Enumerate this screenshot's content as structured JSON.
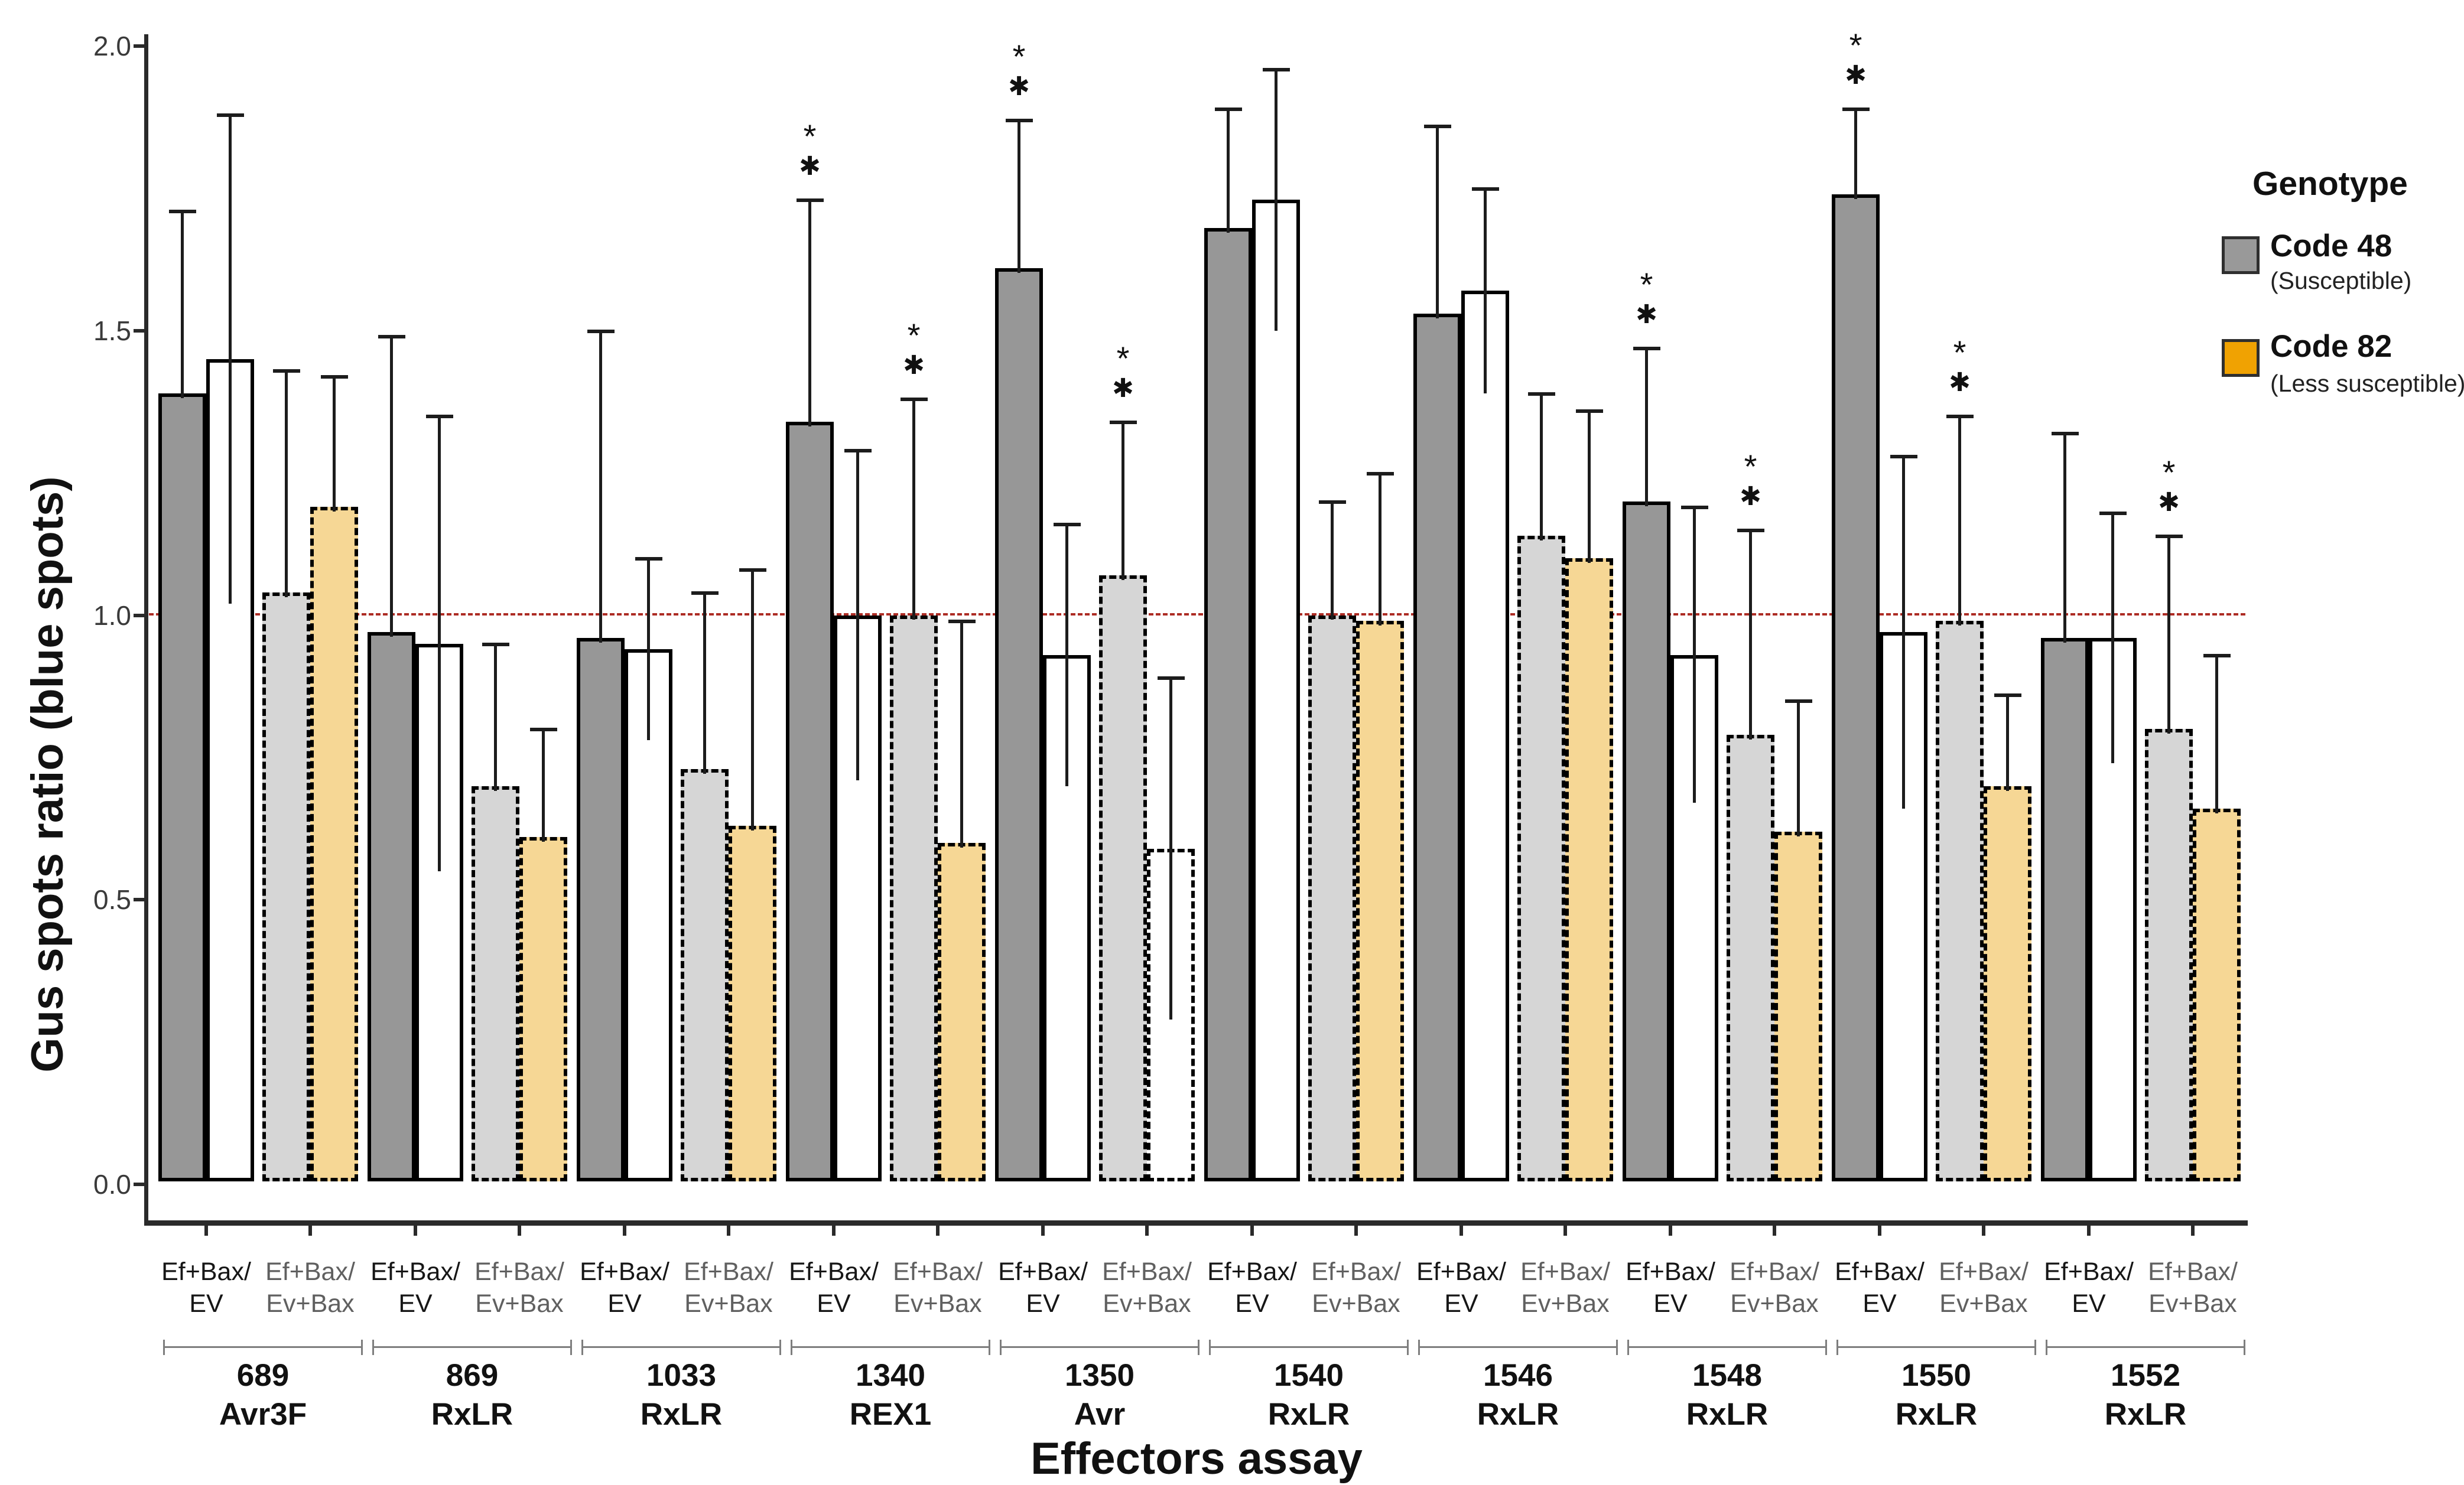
{
  "figure": {
    "y_axis_title": "Gus spots ratio (blue spots)",
    "x_axis_title": "Effectors assay"
  },
  "legend": {
    "title": "Genotype",
    "items": [
      {
        "label": "Code 48",
        "sublabel": "(Susceptible)",
        "color": "#999999"
      },
      {
        "label": "Code 82",
        "sublabel": "(Less susceptible)",
        "color": "#f0a202"
      }
    ]
  },
  "colors": {
    "darkgray": "#979797",
    "white": "#ffffff",
    "lightgray": "#d6d6d6",
    "tan": "#f6d795",
    "axis": "#2a2a2a",
    "reference_line": "#ad2c24",
    "error_bar": "#1c1c1c"
  },
  "chart_data": {
    "type": "bar",
    "title": "",
    "xlabel": "Effectors assay",
    "ylabel": "Gus spots ratio (blue spots)",
    "ylim": [
      0.0,
      2.0
    ],
    "yticks": [
      "0.0",
      "0.5",
      "1.0",
      "1.5",
      "2.0"
    ],
    "ytick_values": [
      0.0,
      0.5,
      1.0,
      1.5,
      2.0
    ],
    "reference_line": 1.0,
    "grid": false,
    "legend_position": "right",
    "significance_symbols": [
      "*",
      "✱"
    ],
    "bar_conditions": [
      {
        "line1": "Ef+Bax/",
        "line2": "EV",
        "tone": "ev"
      },
      {
        "line1": "Ef+Bax/",
        "line2": "Ev+Bax",
        "tone": "evbax"
      }
    ],
    "groups": [
      {
        "code": "689",
        "name": "Avr3F",
        "bars": [
          {
            "pair": 0,
            "fill": "darkgray",
            "dashed": false,
            "value": 1.39,
            "err_top": 1.71,
            "significant": false
          },
          {
            "pair": 0,
            "fill": "white",
            "dashed": false,
            "value": 1.45,
            "err_top": 1.88,
            "significant": false
          },
          {
            "pair": 1,
            "fill": "lightgray",
            "dashed": true,
            "value": 1.04,
            "err_top": 1.43,
            "significant": false
          },
          {
            "pair": 1,
            "fill": "tan",
            "dashed": true,
            "value": 1.19,
            "err_top": 1.42,
            "significant": false
          }
        ]
      },
      {
        "code": "869",
        "name": "RxLR",
        "bars": [
          {
            "pair": 0,
            "fill": "darkgray",
            "dashed": false,
            "value": 0.97,
            "err_top": 1.49,
            "significant": false
          },
          {
            "pair": 0,
            "fill": "white",
            "dashed": false,
            "value": 0.95,
            "err_top": 1.35,
            "significant": false
          },
          {
            "pair": 1,
            "fill": "lightgray",
            "dashed": true,
            "value": 0.7,
            "err_top": 0.95,
            "significant": false
          },
          {
            "pair": 1,
            "fill": "tan",
            "dashed": true,
            "value": 0.61,
            "err_top": 0.8,
            "significant": false
          }
        ]
      },
      {
        "code": "1033",
        "name": "RxLR",
        "bars": [
          {
            "pair": 0,
            "fill": "darkgray",
            "dashed": false,
            "value": 0.96,
            "err_top": 1.5,
            "significant": false
          },
          {
            "pair": 0,
            "fill": "white",
            "dashed": false,
            "value": 0.94,
            "err_top": 1.1,
            "significant": false
          },
          {
            "pair": 1,
            "fill": "lightgray",
            "dashed": true,
            "value": 0.73,
            "err_top": 1.04,
            "significant": false
          },
          {
            "pair": 1,
            "fill": "tan",
            "dashed": true,
            "value": 0.63,
            "err_top": 1.08,
            "significant": false
          }
        ]
      },
      {
        "code": "1340",
        "name": "REX1",
        "bars": [
          {
            "pair": 0,
            "fill": "darkgray",
            "dashed": false,
            "value": 1.34,
            "err_top": 1.73,
            "significant": true
          },
          {
            "pair": 0,
            "fill": "white",
            "dashed": false,
            "value": 1.0,
            "err_top": 1.29,
            "significant": false
          },
          {
            "pair": 1,
            "fill": "lightgray",
            "dashed": true,
            "value": 1.0,
            "err_top": 1.38,
            "significant": true
          },
          {
            "pair": 1,
            "fill": "tan",
            "dashed": true,
            "value": 0.6,
            "err_top": 0.99,
            "significant": false
          }
        ]
      },
      {
        "code": "1350",
        "name": "Avr",
        "bars": [
          {
            "pair": 0,
            "fill": "darkgray",
            "dashed": false,
            "value": 1.61,
            "err_top": 1.87,
            "significant": true
          },
          {
            "pair": 0,
            "fill": "white",
            "dashed": false,
            "value": 0.93,
            "err_top": 1.16,
            "significant": false
          },
          {
            "pair": 1,
            "fill": "lightgray",
            "dashed": true,
            "value": 1.07,
            "err_top": 1.34,
            "significant": true
          },
          {
            "pair": 1,
            "fill": "white",
            "dashed": true,
            "value": 0.59,
            "err_top": 0.89,
            "significant": false
          }
        ]
      },
      {
        "code": "1540",
        "name": "RxLR",
        "bars": [
          {
            "pair": 0,
            "fill": "darkgray",
            "dashed": false,
            "value": 1.68,
            "err_top": 1.89,
            "significant": false
          },
          {
            "pair": 0,
            "fill": "white",
            "dashed": false,
            "value": 1.73,
            "err_top": 1.96,
            "significant": false
          },
          {
            "pair": 1,
            "fill": "lightgray",
            "dashed": true,
            "value": 1.0,
            "err_top": 1.2,
            "significant": false
          },
          {
            "pair": 1,
            "fill": "tan",
            "dashed": true,
            "value": 0.99,
            "err_top": 1.25,
            "significant": false
          }
        ]
      },
      {
        "code": "1546",
        "name": "RxLR",
        "bars": [
          {
            "pair": 0,
            "fill": "darkgray",
            "dashed": false,
            "value": 1.53,
            "err_top": 1.86,
            "significant": false
          },
          {
            "pair": 0,
            "fill": "white",
            "dashed": false,
            "value": 1.57,
            "err_top": 1.75,
            "significant": false
          },
          {
            "pair": 1,
            "fill": "lightgray",
            "dashed": true,
            "value": 1.14,
            "err_top": 1.39,
            "significant": false
          },
          {
            "pair": 1,
            "fill": "tan",
            "dashed": true,
            "value": 1.1,
            "err_top": 1.36,
            "significant": false
          }
        ]
      },
      {
        "code": "1548",
        "name": "RxLR",
        "bars": [
          {
            "pair": 0,
            "fill": "darkgray",
            "dashed": false,
            "value": 1.2,
            "err_top": 1.47,
            "significant": true
          },
          {
            "pair": 0,
            "fill": "white",
            "dashed": false,
            "value": 0.93,
            "err_top": 1.19,
            "significant": false
          },
          {
            "pair": 1,
            "fill": "lightgray",
            "dashed": true,
            "value": 0.79,
            "err_top": 1.15,
            "significant": true
          },
          {
            "pair": 1,
            "fill": "tan",
            "dashed": true,
            "value": 0.62,
            "err_top": 0.85,
            "significant": false
          }
        ]
      },
      {
        "code": "1550",
        "name": "RxLR",
        "bars": [
          {
            "pair": 0,
            "fill": "darkgray",
            "dashed": false,
            "value": 1.74,
            "err_top": 1.89,
            "significant": true
          },
          {
            "pair": 0,
            "fill": "white",
            "dashed": false,
            "value": 0.97,
            "err_top": 1.28,
            "significant": false
          },
          {
            "pair": 1,
            "fill": "lightgray",
            "dashed": true,
            "value": 0.99,
            "err_top": 1.35,
            "significant": true
          },
          {
            "pair": 1,
            "fill": "tan",
            "dashed": true,
            "value": 0.7,
            "err_top": 0.86,
            "significant": false
          }
        ]
      },
      {
        "code": "1552",
        "name": "RxLR",
        "bars": [
          {
            "pair": 0,
            "fill": "darkgray",
            "dashed": false,
            "value": 0.96,
            "err_top": 1.32,
            "significant": false
          },
          {
            "pair": 0,
            "fill": "white",
            "dashed": false,
            "value": 0.96,
            "err_top": 1.18,
            "significant": false
          },
          {
            "pair": 1,
            "fill": "lightgray",
            "dashed": true,
            "value": 0.8,
            "err_top": 1.14,
            "significant": true
          },
          {
            "pair": 1,
            "fill": "tan",
            "dashed": true,
            "value": 0.66,
            "err_top": 0.93,
            "significant": false
          }
        ]
      }
    ]
  }
}
